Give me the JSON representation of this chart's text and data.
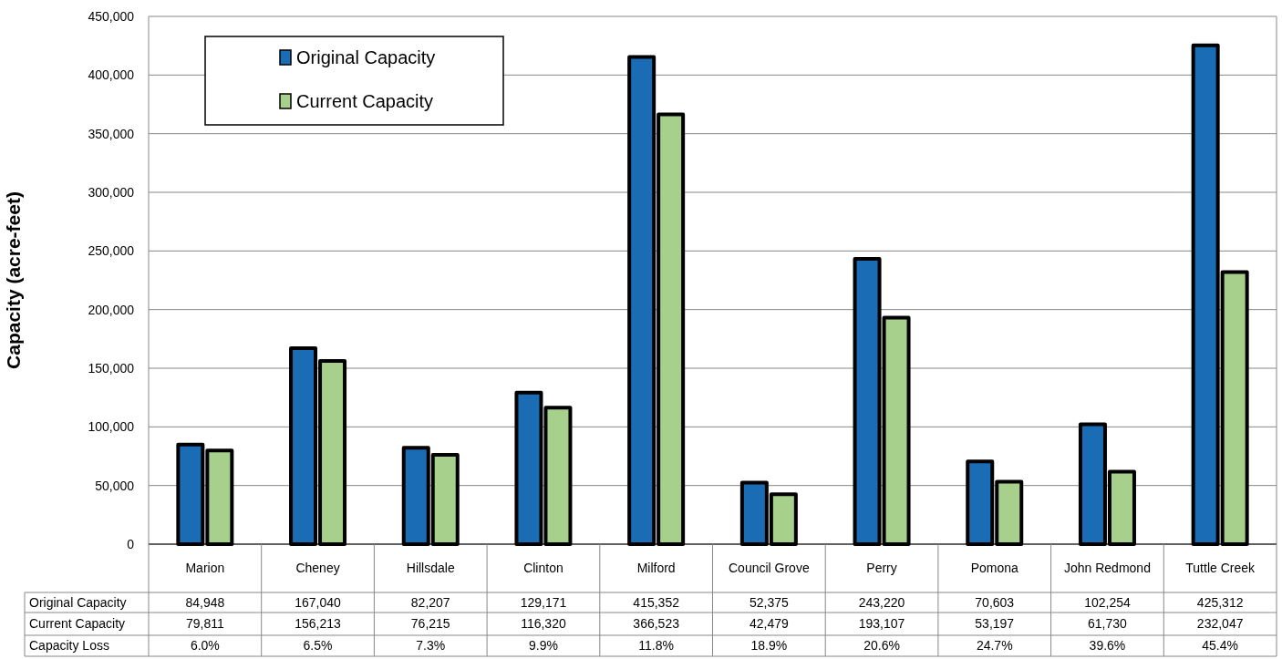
{
  "chart_data": {
    "type": "bar",
    "ylabel": "Capacity (acre-feet)",
    "categories": [
      "Marion",
      "Cheney",
      "Hillsdale",
      "Clinton",
      "Milford",
      "Council Grove",
      "Perry",
      "Pomona",
      "John Redmond",
      "Tuttle Creek"
    ],
    "series": [
      {
        "name": "Original Capacity",
        "color": "#1a6db5",
        "values": [
          84948,
          167040,
          82207,
          129171,
          415352,
          52375,
          243220,
          70603,
          102254,
          425312
        ],
        "value_labels": [
          "84,948",
          "167,040",
          "82,207",
          "129,171",
          "415,352",
          "52,375",
          "243,220",
          "70,603",
          "102,254",
          "425,312"
        ]
      },
      {
        "name": "Current Capacity",
        "color": "#a8d08d",
        "values": [
          79811,
          156213,
          76215,
          116320,
          366523,
          42479,
          193107,
          53197,
          61730,
          232047
        ],
        "value_labels": [
          "79,811",
          "156,213",
          "76,215",
          "116,320",
          "366,523",
          "42,479",
          "193,107",
          "53,197",
          "61,730",
          "232,047"
        ]
      }
    ],
    "ylim": [
      0,
      450000
    ],
    "yticks": [
      {
        "value": 0,
        "label": "0"
      },
      {
        "value": 50000,
        "label": "50,000"
      },
      {
        "value": 100000,
        "label": "100,000"
      },
      {
        "value": 150000,
        "label": "150,000"
      },
      {
        "value": 200000,
        "label": "200,000"
      },
      {
        "value": 250000,
        "label": "250,000"
      },
      {
        "value": 300000,
        "label": "300,000"
      },
      {
        "value": 350000,
        "label": "350,000"
      },
      {
        "value": 400000,
        "label": "400,000"
      },
      {
        "value": 450000,
        "label": "450,000"
      }
    ],
    "grid": "y",
    "legend": "top left",
    "annotations": [
      "Capacity Loss",
      "6.0%",
      "6.5%",
      "7.3%",
      "9.9%",
      "11.8%",
      "18.9%",
      "20.6%",
      "24.7%",
      "39.6%",
      "45.4%"
    ]
  }
}
